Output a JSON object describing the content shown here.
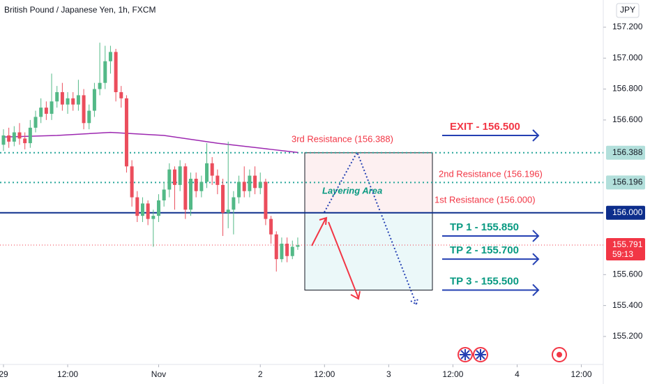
{
  "chart_data": {
    "type": "candlestick",
    "title": "British Pound / Japanese Yen, 1h, FXCM",
    "currency": "JPY",
    "up_color": "#53b987",
    "down_color": "#eb4d5c",
    "candles": {
      "open": [
        156.44,
        156.5,
        156.46,
        156.52,
        156.48,
        156.45,
        156.55,
        156.62,
        156.68,
        156.64,
        156.72,
        156.78,
        156.7,
        156.74,
        156.7,
        156.76,
        156.58,
        156.66,
        156.8,
        156.84,
        156.98,
        157.04,
        156.78,
        156.74,
        156.3,
        156.1,
        155.98,
        156.06,
        155.96,
        155.98,
        156.08,
        156.15,
        156.28,
        156.18,
        156.3,
        156.02,
        156.22,
        156.14,
        156.2,
        156.32,
        156.24,
        156.18,
        156.0,
        156.02,
        156.1,
        156.2,
        156.14,
        156.24,
        156.16,
        156.2,
        155.96,
        155.86,
        155.7,
        155.8,
        155.72,
        155.78
      ],
      "high": [
        156.54,
        156.55,
        156.56,
        156.58,
        156.52,
        156.6,
        156.66,
        156.74,
        156.72,
        156.9,
        156.82,
        156.84,
        156.78,
        156.78,
        156.86,
        156.8,
        156.7,
        156.84,
        157.1,
        157.08,
        157.08,
        157.06,
        156.82,
        156.76,
        156.34,
        156.14,
        156.1,
        156.08,
        156.02,
        156.12,
        156.2,
        156.32,
        156.3,
        156.34,
        156.32,
        156.26,
        156.26,
        156.24,
        156.45,
        156.36,
        156.28,
        156.22,
        156.46,
        156.14,
        156.24,
        156.3,
        156.28,
        156.3,
        156.26,
        156.22,
        155.98,
        155.88,
        155.84,
        155.84,
        155.82,
        155.84
      ],
      "low": [
        156.4,
        156.42,
        156.43,
        156.44,
        156.41,
        156.42,
        156.52,
        156.58,
        156.6,
        156.6,
        156.68,
        156.66,
        156.64,
        156.66,
        156.66,
        156.54,
        156.54,
        156.62,
        156.76,
        156.8,
        156.9,
        156.72,
        156.68,
        156.26,
        156.04,
        155.94,
        155.94,
        155.92,
        155.78,
        155.94,
        156.04,
        156.1,
        156.02,
        156.14,
        155.96,
        155.98,
        156.1,
        156.1,
        156.16,
        156.18,
        156.12,
        155.85,
        155.9,
        155.86,
        156.06,
        156.1,
        156.1,
        156.12,
        156.12,
        155.92,
        155.8,
        155.62,
        155.68,
        155.68,
        155.7,
        155.76
      ],
      "close": [
        156.5,
        156.46,
        156.52,
        156.48,
        156.45,
        156.55,
        156.62,
        156.68,
        156.64,
        156.72,
        156.78,
        156.7,
        156.74,
        156.7,
        156.76,
        156.58,
        156.66,
        156.8,
        156.84,
        156.98,
        157.04,
        156.78,
        156.74,
        156.3,
        156.1,
        155.98,
        156.06,
        155.96,
        155.98,
        156.08,
        156.15,
        156.28,
        156.18,
        156.3,
        156.02,
        156.22,
        156.14,
        156.2,
        156.32,
        156.24,
        156.18,
        156.0,
        156.02,
        156.1,
        156.2,
        156.14,
        156.24,
        156.16,
        156.2,
        155.96,
        155.86,
        155.7,
        155.8,
        155.72,
        155.78,
        155.79
      ]
    },
    "moving_average": {
      "color": "#9c27b0",
      "x": [
        0,
        10,
        20,
        30,
        40,
        50,
        55
      ],
      "values": [
        156.49,
        156.5,
        156.52,
        156.5,
        156.45,
        156.41,
        156.39
      ]
    },
    "xlim": [
      -0.65,
      112.1
    ],
    "xticks": [
      {
        "value": 0,
        "label": "29"
      },
      {
        "value": 12,
        "label": "12:00"
      },
      {
        "value": 29,
        "label": "Nov"
      },
      {
        "value": 48,
        "label": "2"
      },
      {
        "value": 60,
        "label": "12:00"
      },
      {
        "value": 72,
        "label": "3"
      },
      {
        "value": 84,
        "label": "12:00"
      },
      {
        "value": 96,
        "label": "4"
      },
      {
        "value": 108,
        "label": "12:00"
      }
    ],
    "ylim": [
      155.028,
      157.376
    ],
    "yticks": [
      {
        "value": 157.2,
        "label": "157.200"
      },
      {
        "value": 157.0,
        "label": "157.000"
      },
      {
        "value": 156.8,
        "label": "156.800"
      },
      {
        "value": 156.6,
        "label": "156.600"
      },
      {
        "value": 155.6,
        "label": "155.600"
      },
      {
        "value": 155.4,
        "label": "155.400"
      },
      {
        "value": 155.2,
        "label": "155.200"
      }
    ],
    "levels": [
      {
        "value": 156.388,
        "color": "#26a69a",
        "style": "dotted",
        "badge_color": "#b2dfdb",
        "text_color": "#131722"
      },
      {
        "value": 156.196,
        "color": "#26a69a",
        "style": "dotted",
        "badge_color": "#b2dfdb",
        "text_color": "#131722"
      },
      {
        "value": 156.0,
        "label": "156.000",
        "color": "#0d2e8c",
        "style": "solid",
        "badge_color": "#0d2e8c",
        "text_color": "#ffffff"
      }
    ],
    "last_price": {
      "value": 155.791,
      "countdown": "59:13",
      "color": "#f23645"
    },
    "annotations": {
      "resistance_3": "3rd Resistance (156.388)",
      "resistance_2": "2nd Resistance (156.196)",
      "resistance_1": "1st Resistance (156.000)",
      "area": "Layering Area"
    },
    "targets": [
      {
        "label": "EXIT - 156.500",
        "value": 156.5,
        "color": "#f23645"
      },
      {
        "label": "TP 1 - 155.850",
        "value": 155.85,
        "color": "#089981"
      },
      {
        "label": "TP 2 - 155.700",
        "value": 155.7,
        "color": "#089981"
      },
      {
        "label": "TP 3 - 155.500",
        "value": 155.5,
        "color": "#089981"
      }
    ]
  }
}
